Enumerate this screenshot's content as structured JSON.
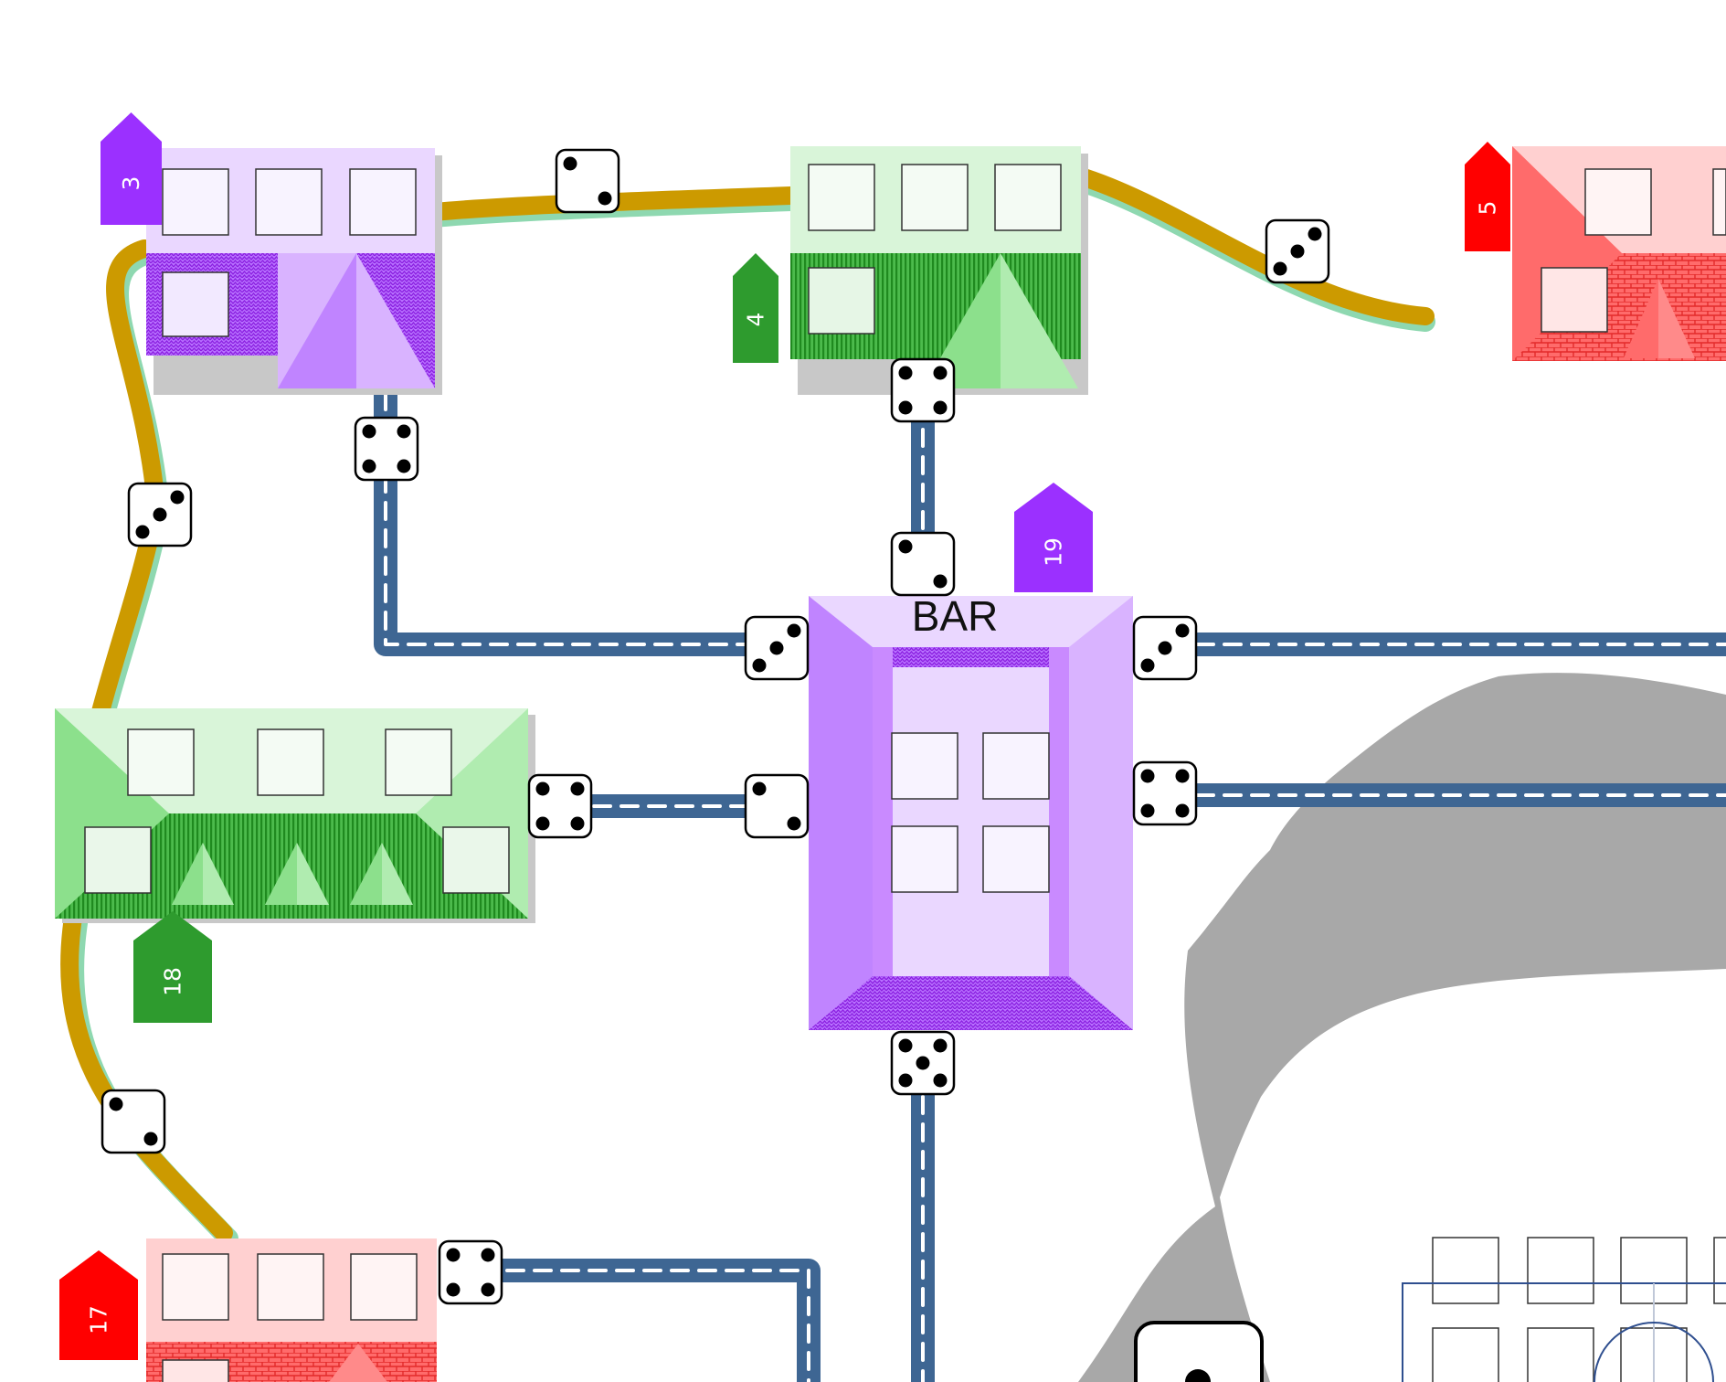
{
  "board": {
    "bar_label": "BAR",
    "markers": [
      {
        "label": "3",
        "color": "#9b30ff"
      },
      {
        "label": "4",
        "color": "#2e9b2e"
      },
      {
        "label": "5",
        "color": "#ff0000"
      },
      {
        "label": "19",
        "color": "#9b30ff"
      },
      {
        "label": "18",
        "color": "#2e9b2e"
      },
      {
        "label": "17",
        "color": "#ff0000"
      }
    ],
    "dice": [
      {
        "value": 2
      },
      {
        "value": 3
      },
      {
        "value": 4
      },
      {
        "value": 3
      },
      {
        "value": 4
      },
      {
        "value": 2
      },
      {
        "value": 3
      },
      {
        "value": 3
      },
      {
        "value": 4
      },
      {
        "value": 2
      },
      {
        "value": 4
      },
      {
        "value": 5
      },
      {
        "value": 2
      },
      {
        "value": 4
      }
    ],
    "colors": {
      "road": "#3e6693",
      "rail": "#cc9a00",
      "rail_edge": "#8ed8b0",
      "lake": "#a8a8a8",
      "purple": "#9b30ff",
      "green": "#2e9b2e",
      "red": "#ff0000"
    }
  }
}
